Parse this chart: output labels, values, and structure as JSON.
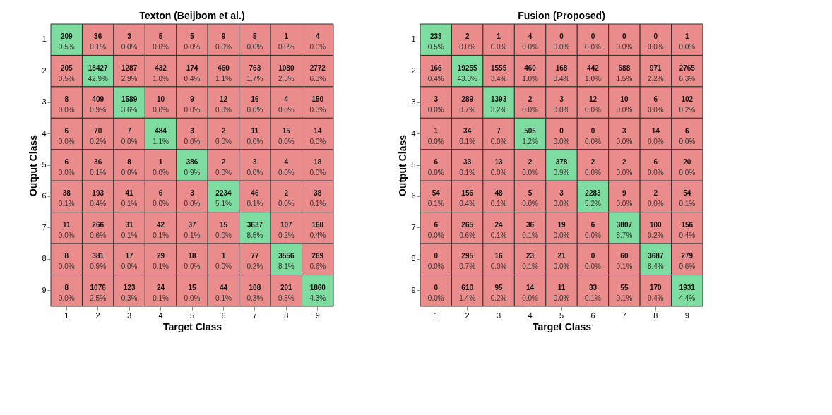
{
  "chart_data": [
    {
      "type": "heatmap",
      "title": "Texton (Beijbom et al.)",
      "xlabel": "Target Class",
      "ylabel": "Output Class",
      "grid": false,
      "data_labels": true,
      "colors": [
        "#7fdca0",
        "#eb8c8c"
      ],
      "categories": [
        "1",
        "2",
        "3",
        "4",
        "5",
        "6",
        "7",
        "8",
        "9"
      ],
      "y_categories": [
        "1",
        "2",
        "3",
        "4",
        "5",
        "6",
        "7",
        "8",
        "9"
      ],
      "cells": [
        [
          209,
          36,
          3,
          5,
          5,
          9,
          5,
          1,
          4
        ],
        [
          205,
          18427,
          1287,
          432,
          174,
          460,
          763,
          1080,
          2772
        ],
        [
          8,
          409,
          1589,
          10,
          9,
          12,
          16,
          4,
          150
        ],
        [
          6,
          70,
          7,
          484,
          3,
          2,
          11,
          15,
          14
        ],
        [
          6,
          36,
          8,
          1,
          386,
          2,
          3,
          4,
          18
        ],
        [
          38,
          193,
          41,
          6,
          3,
          2234,
          46,
          2,
          38
        ],
        [
          11,
          266,
          31,
          42,
          37,
          15,
          3637,
          107,
          168
        ],
        [
          8,
          381,
          17,
          29,
          18,
          1,
          77,
          3556,
          269
        ],
        [
          8,
          1076,
          123,
          24,
          15,
          44,
          108,
          201,
          1860
        ]
      ],
      "annotations": [
        "0.5%",
        "0.1%",
        "0.0%",
        "0.0%",
        "0.0%",
        "0.0%",
        "0.0%",
        "0.0%",
        "0.0%",
        "0.5%",
        "42.9%",
        "2.9%",
        "1.0%",
        "0.4%",
        "1.1%",
        "1.7%",
        "2.3%",
        "6.3%",
        "0.0%",
        "0.9%",
        "3.6%",
        "0.0%",
        "0.0%",
        "0.0%",
        "0.0%",
        "0.0%",
        "0.3%",
        "0.0%",
        "0.2%",
        "0.0%",
        "1.1%",
        "0.0%",
        "0.0%",
        "0.0%",
        "0.0%",
        "0.0%",
        "0.0%",
        "0.1%",
        "0.0%",
        "0.0%",
        "0.9%",
        "0.0%",
        "0.0%",
        "0.0%",
        "0.0%",
        "0.1%",
        "0.4%",
        "0.1%",
        "0.0%",
        "0.0%",
        "5.1%",
        "0.1%",
        "0.0%",
        "0.1%",
        "0.0%",
        "0.6%",
        "0.1%",
        "0.1%",
        "0.1%",
        "0.0%",
        "8.5%",
        "0.2%",
        "0.4%",
        "0.0%",
        "0.9%",
        "0.0%",
        "0.1%",
        "0.0%",
        "0.0%",
        "0.2%",
        "8.1%",
        "0.6%",
        "0.0%",
        "2.5%",
        "0.3%",
        "0.1%",
        "0.0%",
        "0.1%",
        "0.3%",
        "0.5%",
        "4.3%"
      ]
    },
    {
      "type": "heatmap",
      "title": "Fusion (Proposed)",
      "xlabel": "Target Class",
      "ylabel": "Output Class",
      "grid": false,
      "data_labels": true,
      "colors": [
        "#7fdca0",
        "#eb8c8c"
      ],
      "categories": [
        "1",
        "2",
        "3",
        "4",
        "5",
        "6",
        "7",
        "8",
        "9"
      ],
      "y_categories": [
        "1",
        "2",
        "3",
        "4",
        "5",
        "6",
        "7",
        "8",
        "9"
      ],
      "cells": [
        [
          233,
          2,
          1,
          4,
          0,
          0,
          0,
          0,
          1
        ],
        [
          166,
          19255,
          1555,
          460,
          168,
          442,
          688,
          971,
          2765
        ],
        [
          3,
          289,
          1393,
          2,
          3,
          12,
          10,
          6,
          102
        ],
        [
          1,
          34,
          7,
          505,
          0,
          0,
          3,
          14,
          6
        ],
        [
          6,
          33,
          13,
          2,
          378,
          2,
          2,
          6,
          20
        ],
        [
          54,
          156,
          48,
          5,
          3,
          2283,
          9,
          2,
          54
        ],
        [
          6,
          265,
          24,
          36,
          19,
          6,
          3807,
          100,
          156
        ],
        [
          0,
          295,
          16,
          23,
          21,
          0,
          60,
          3687,
          279
        ],
        [
          0,
          610,
          95,
          14,
          11,
          33,
          55,
          170,
          1931
        ]
      ],
      "annotations": [
        "0.5%",
        "0.0%",
        "0.0%",
        "0.0%",
        "0.0%",
        "0.0%",
        "0.0%",
        "0.0%",
        "0.0%",
        "0.4%",
        "43.0%",
        "3.4%",
        "1.0%",
        "0.4%",
        "1.0%",
        "1.5%",
        "2.2%",
        "6.3%",
        "0.0%",
        "0.7%",
        "3.2%",
        "0.0%",
        "0.0%",
        "0.0%",
        "0.0%",
        "0.0%",
        "0.2%",
        "0.0%",
        "0.1%",
        "0.0%",
        "1.2%",
        "0.0%",
        "0.0%",
        "0.0%",
        "0.0%",
        "0.0%",
        "0.0%",
        "0.1%",
        "0.0%",
        "0.0%",
        "0.9%",
        "0.0%",
        "0.0%",
        "0.0%",
        "0.0%",
        "0.1%",
        "0.4%",
        "0.1%",
        "0.0%",
        "0.0%",
        "5.2%",
        "0.0%",
        "0.0%",
        "0.1%",
        "0.0%",
        "0.6%",
        "0.1%",
        "0.1%",
        "0.0%",
        "0.0%",
        "8.7%",
        "0.2%",
        "0.4%",
        "0.0%",
        "0.7%",
        "0.0%",
        "0.1%",
        "0.0%",
        "0.0%",
        "0.1%",
        "8.4%",
        "0.6%",
        "0.0%",
        "1.4%",
        "0.2%",
        "0.0%",
        "0.0%",
        "0.1%",
        "0.1%",
        "0.4%",
        "4.4%"
      ]
    }
  ]
}
